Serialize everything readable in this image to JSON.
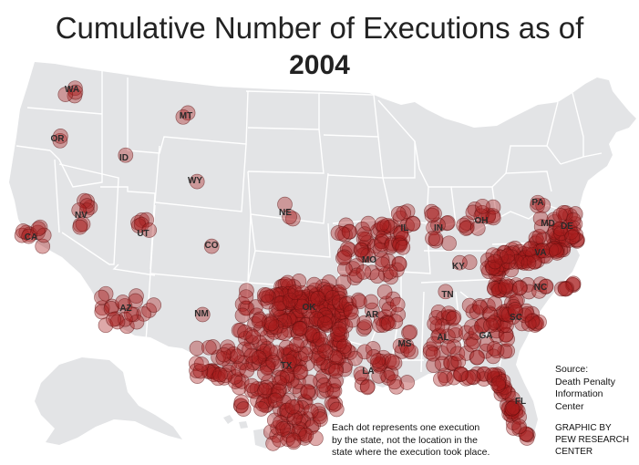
{
  "title": {
    "line1": "Cumulative Number of Executions as of",
    "line2": "2004"
  },
  "colors": {
    "map_fill": "#e3e4e6",
    "border": "#ffffff",
    "dot_fill": "#a81d1d",
    "dot_stroke": "#5a0d0d"
  },
  "states": [
    {
      "code": "WA",
      "count": 4
    },
    {
      "code": "OR",
      "count": 2
    },
    {
      "code": "ID",
      "count": 1
    },
    {
      "code": "MT",
      "count": 2
    },
    {
      "code": "WY",
      "count": 1
    },
    {
      "code": "CA",
      "count": 10
    },
    {
      "code": "NV",
      "count": 9
    },
    {
      "code": "UT",
      "count": 6
    },
    {
      "code": "CO",
      "count": 1
    },
    {
      "code": "AZ",
      "count": 22
    },
    {
      "code": "NM",
      "count": 1
    },
    {
      "code": "NE",
      "count": 3
    },
    {
      "code": "OK",
      "count": 75
    },
    {
      "code": "TX",
      "count": 336
    },
    {
      "code": "MO",
      "count": 61
    },
    {
      "code": "AR",
      "count": 26
    },
    {
      "code": "LA",
      "count": 27
    },
    {
      "code": "IL",
      "count": 12
    },
    {
      "code": "IN",
      "count": 11
    },
    {
      "code": "OH",
      "count": 15
    },
    {
      "code": "KY",
      "count": 2
    },
    {
      "code": "TN",
      "count": 1
    },
    {
      "code": "MS",
      "count": 6
    },
    {
      "code": "AL",
      "count": 30
    },
    {
      "code": "GA",
      "count": 36
    },
    {
      "code": "FL",
      "count": 59
    },
    {
      "code": "SC",
      "count": 30
    },
    {
      "code": "NC",
      "count": 30
    },
    {
      "code": "VA",
      "count": 94
    },
    {
      "code": "MD",
      "count": 4
    },
    {
      "code": "DE",
      "count": 13
    },
    {
      "code": "PA",
      "count": 3
    }
  ],
  "notes": {
    "dot_line1": "Each dot represents one execution",
    "dot_line2": "by the state, not the location in the",
    "dot_line3": "state where the execution took place.",
    "source_line1": "Source:",
    "source_line2": "Death Penalty",
    "source_line3": "Information",
    "source_line4": "Center",
    "credit_line1": "GRAPHIC BY",
    "credit_line2": "PEW RESEARCH",
    "credit_line3": "CENTER"
  }
}
